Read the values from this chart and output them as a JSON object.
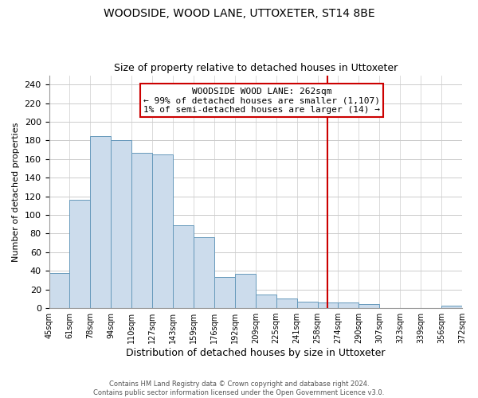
{
  "title": "WOODSIDE, WOOD LANE, UTTOXETER, ST14 8BE",
  "subtitle": "Size of property relative to detached houses in Uttoxeter",
  "xlabel": "Distribution of detached houses by size in Uttoxeter",
  "ylabel": "Number of detached properties",
  "footnote1": "Contains HM Land Registry data © Crown copyright and database right 2024.",
  "footnote2": "Contains public sector information licensed under the Open Government Licence v3.0.",
  "bar_labels": [
    "45sqm",
    "61sqm",
    "78sqm",
    "94sqm",
    "110sqm",
    "127sqm",
    "143sqm",
    "159sqm",
    "176sqm",
    "192sqm",
    "209sqm",
    "225sqm",
    "241sqm",
    "258sqm",
    "274sqm",
    "290sqm",
    "307sqm",
    "323sqm",
    "339sqm",
    "356sqm",
    "372sqm"
  ],
  "bar_values": [
    38,
    116,
    185,
    180,
    167,
    165,
    89,
    76,
    33,
    37,
    15,
    10,
    7,
    6,
    6,
    4,
    0,
    0,
    0,
    3
  ],
  "bar_color": "#ccdcec",
  "bar_edge_color": "#6699bb",
  "grid_color": "#cccccc",
  "vline_x": 13.5,
  "vline_color": "#cc0000",
  "annotation_title": "WOODSIDE WOOD LANE: 262sqm",
  "annotation_line1": "← 99% of detached houses are smaller (1,107)",
  "annotation_line2": "1% of semi-detached houses are larger (14) →",
  "annotation_box_color": "#ffffff",
  "annotation_box_edge": "#cc0000",
  "ylim": [
    0,
    250
  ],
  "yticks": [
    0,
    20,
    40,
    60,
    80,
    100,
    120,
    140,
    160,
    180,
    200,
    220,
    240
  ],
  "title_fontsize": 10,
  "subtitle_fontsize": 9,
  "ylabel_fontsize": 8,
  "xlabel_fontsize": 9,
  "ytick_fontsize": 8,
  "xtick_fontsize": 7,
  "annot_fontsize": 8,
  "footnote_fontsize": 6
}
